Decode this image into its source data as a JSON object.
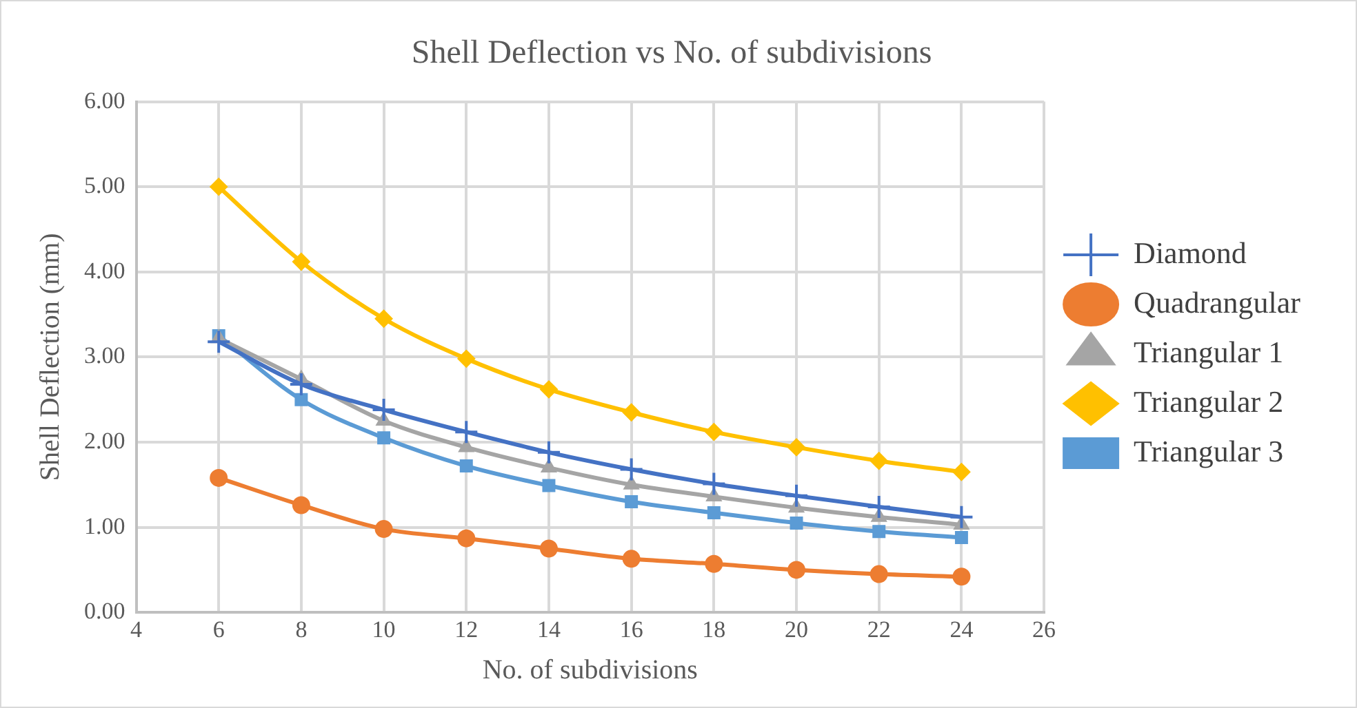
{
  "chart_data": {
    "type": "line",
    "title": "Shell Deflection vs No. of subdivisions",
    "xlabel": "No. of subdivisions",
    "ylabel": "Shell Deflection (mm)",
    "x": [
      6,
      8,
      10,
      12,
      14,
      16,
      18,
      20,
      22,
      24
    ],
    "series": [
      {
        "name": "Diamond",
        "color": "#4472c4",
        "marker": "cross",
        "values": [
          3.18,
          2.68,
          2.38,
          2.12,
          1.88,
          1.68,
          1.51,
          1.37,
          1.24,
          1.12
        ]
      },
      {
        "name": "Quadrangular",
        "color": "#ed7d31",
        "marker": "circle",
        "values": [
          1.58,
          1.26,
          0.98,
          0.87,
          0.75,
          0.63,
          0.57,
          0.5,
          0.45,
          0.42
        ]
      },
      {
        "name": "Triangular 1",
        "color": "#a5a5a5",
        "marker": "triangle",
        "values": [
          3.22,
          2.74,
          2.25,
          1.94,
          1.7,
          1.5,
          1.36,
          1.23,
          1.12,
          1.03
        ]
      },
      {
        "name": "Triangular 2",
        "color": "#ffc000",
        "marker": "diamond",
        "values": [
          5.0,
          4.12,
          3.45,
          2.98,
          2.62,
          2.35,
          2.12,
          1.94,
          1.78,
          1.65
        ]
      },
      {
        "name": "Triangular 3",
        "color": "#5b9bd5",
        "marker": "square",
        "values": [
          3.25,
          2.5,
          2.05,
          1.72,
          1.49,
          1.3,
          1.17,
          1.05,
          0.95,
          0.88
        ]
      }
    ],
    "xlim": [
      4,
      26
    ],
    "xticks": [
      4,
      6,
      8,
      10,
      12,
      14,
      16,
      18,
      20,
      22,
      24,
      26
    ],
    "ylim": [
      0,
      6
    ],
    "yticks": [
      {
        "value": 0,
        "label": "0.00"
      },
      {
        "value": 1,
        "label": "1.00"
      },
      {
        "value": 2,
        "label": "2.00"
      },
      {
        "value": 3,
        "label": "3.00"
      },
      {
        "value": 4,
        "label": "4.00"
      },
      {
        "value": 5,
        "label": "5.00"
      },
      {
        "value": 6,
        "label": "6.00"
      }
    ],
    "grid": true,
    "legend": "right",
    "line_style": "solid"
  }
}
